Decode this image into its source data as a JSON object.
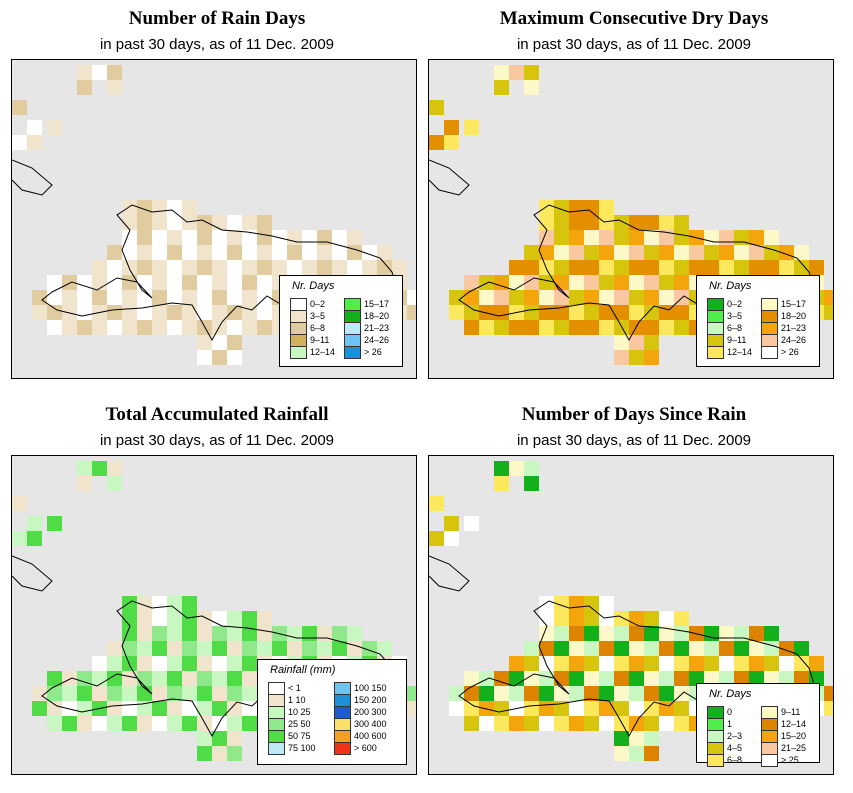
{
  "panels": [
    {
      "id": "rain-days",
      "title": "Number of Rain Days",
      "subtitle": "in past 30 days, as of  11 Dec. 2009",
      "legend": {
        "title": "Nr. Days",
        "items": [
          {
            "label": "0–2",
            "color": "#ffffff"
          },
          {
            "label": "3–5",
            "color": "#f0e4cd"
          },
          {
            "label": "6–8",
            "color": "#e0cc9f"
          },
          {
            "label": "9–11",
            "color": "#d2b25e"
          },
          {
            "label": "12–14",
            "color": "#c9f7c2"
          },
          {
            "label": "15–17",
            "color": "#50ee4c"
          },
          {
            "label": "18–20",
            "color": "#14b01c"
          },
          {
            "label": "21–23",
            "color": "#bde8f6"
          },
          {
            "label": "24–26",
            "color": "#6cc4f4"
          },
          {
            "label": "> 26",
            "color": "#1e90d8"
          }
        ]
      }
    },
    {
      "id": "max-dry-days",
      "title": "Maximum Consecutive Dry Days",
      "subtitle": "in past 30 days, as of  11 Dec. 2009",
      "legend": {
        "title": "Nr. Days",
        "items": [
          {
            "label": "0–2",
            "color": "#14b01c"
          },
          {
            "label": "3–5",
            "color": "#50ee4c"
          },
          {
            "label": "6–8",
            "color": "#c9f7c2"
          },
          {
            "label": "9–11",
            "color": "#d6c50c"
          },
          {
            "label": "12–14",
            "color": "#fbe85c"
          },
          {
            "label": "15–17",
            "color": "#fcf8c8"
          },
          {
            "label": "18–20",
            "color": "#e48f00"
          },
          {
            "label": "21–23",
            "color": "#f4a50c"
          },
          {
            "label": "24–26",
            "color": "#f9c8a0"
          },
          {
            "label": "> 26",
            "color": "#ffffff"
          }
        ]
      }
    },
    {
      "id": "total-rainfall",
      "title": "Total Accumulated Rainfall",
      "subtitle": "in past 30 days, as of  11 Dec. 2009",
      "legend": {
        "title": "Rainfall (mm)",
        "items": [
          {
            "label": "< 1",
            "color": "#ffffff"
          },
          {
            "label": "1   10",
            "color": "#f0e4cd"
          },
          {
            "label": "10   25",
            "color": "#c9f7c2"
          },
          {
            "label": "25   50",
            "color": "#8fe88a"
          },
          {
            "label": "50   75",
            "color": "#50dc46"
          },
          {
            "label": "75   100",
            "color": "#bde8f6"
          },
          {
            "label": "100   150",
            "color": "#6cc4f4"
          },
          {
            "label": "150   200",
            "color": "#1e90d8"
          },
          {
            "label": "200   300",
            "color": "#1c5ccc"
          },
          {
            "label": "300   400",
            "color": "#fbe06c"
          },
          {
            "label": "400   600",
            "color": "#f4a024"
          },
          {
            "label": "> 600",
            "color": "#f03418"
          }
        ]
      }
    },
    {
      "id": "days-since-rain",
      "title": "Number of Days Since Rain",
      "subtitle": "in past 30 days, as of  11 Dec. 2009",
      "legend": {
        "title": "Nr. Days",
        "items": [
          {
            "label": "0",
            "color": "#14b01c"
          },
          {
            "label": "1",
            "color": "#50ee4c"
          },
          {
            "label": "2–3",
            "color": "#c9f7c2"
          },
          {
            "label": "4–5",
            "color": "#d6c50c"
          },
          {
            "label": "6–8",
            "color": "#fbe85c"
          },
          {
            "label": "9–11",
            "color": "#fcf8c8"
          },
          {
            "label": "12–14",
            "color": "#dc8400"
          },
          {
            "label": "15–20",
            "color": "#f4a50c"
          },
          {
            "label": "21–25",
            "color": "#f9c8a0"
          },
          {
            "label": "> 25",
            "color": "#ffffff"
          }
        ]
      }
    }
  ]
}
